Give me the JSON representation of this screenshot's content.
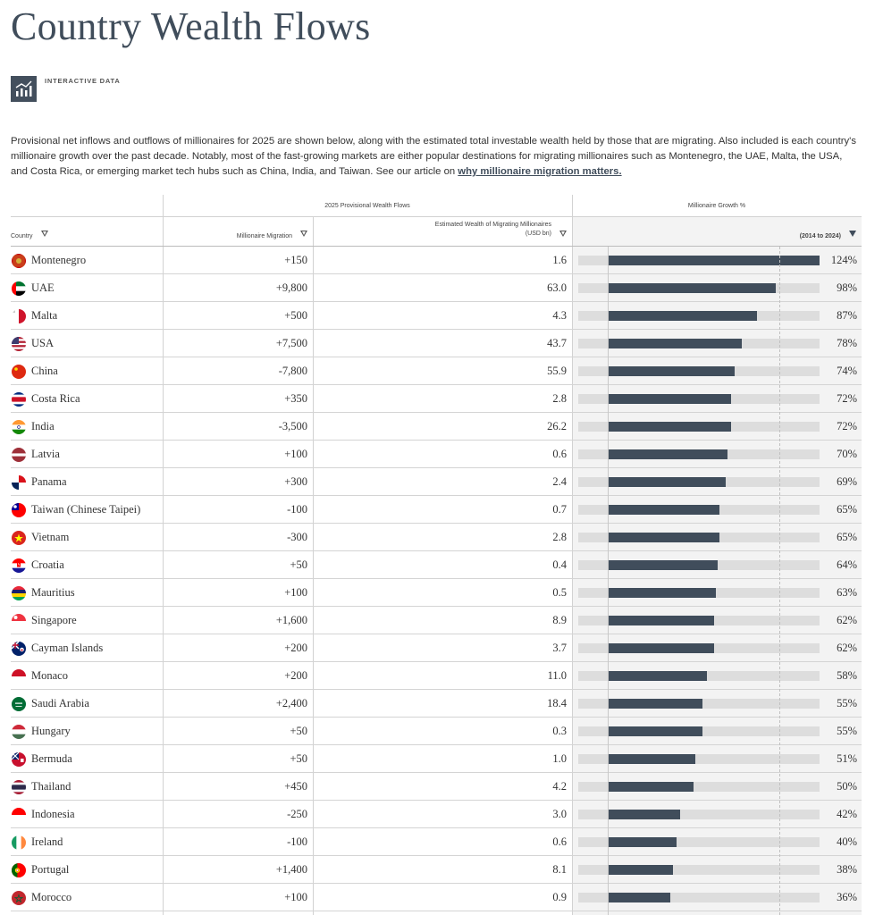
{
  "page": {
    "title": "Country Wealth Flows",
    "tag": "INTERACTIVE DATA",
    "intro": "Provisional net inflows and outflows of millionaires for 2025 are shown below, along with the estimated total investable wealth held by those that are migrating. Also included is each country's millionaire growth over the past decade. Notably, most of the fast-growing markets are either popular destinations for migrating millionaires such as Montenegro, the UAE, Malta, the USA, and Costa Rica, or emerging market tech hubs such as China, India, and Taiwan. See our article on ",
    "intro_link": "why millionaire migration matters."
  },
  "table": {
    "group_flows": "2025 Provisional Wealth Flows",
    "group_growth": "Millionaire Growth %",
    "col_country": "Country",
    "col_migration": "Millionaire Migration",
    "col_wealth_line1": "Estimated Wealth of Migrating Millionaires",
    "col_wealth_line2": "(USD bn)",
    "col_growth": "(2014 to 2024)",
    "colors": {
      "bar": "#404d5b",
      "track": "#dddddd",
      "title": "#404d5b"
    },
    "rows": [
      {
        "country": "Montenegro",
        "migration": "+150",
        "wealth": "1.6",
        "growth": "124%",
        "growth_value": 124,
        "flag": "montenegro-flag"
      },
      {
        "country": "UAE",
        "migration": "+9,800",
        "wealth": "63.0",
        "growth": "98%",
        "growth_value": 98,
        "flag": "uae-flag"
      },
      {
        "country": "Malta",
        "migration": "+500",
        "wealth": "4.3",
        "growth": "87%",
        "growth_value": 87,
        "flag": "malta-flag"
      },
      {
        "country": "USA",
        "migration": "+7,500",
        "wealth": "43.7",
        "growth": "78%",
        "growth_value": 78,
        "flag": "usa-flag"
      },
      {
        "country": "China",
        "migration": "-7,800",
        "wealth": "55.9",
        "growth": "74%",
        "growth_value": 74,
        "flag": "china-flag"
      },
      {
        "country": "Costa Rica",
        "migration": "+350",
        "wealth": "2.8",
        "growth": "72%",
        "growth_value": 72,
        "flag": "costa-rica-flag"
      },
      {
        "country": "India",
        "migration": "-3,500",
        "wealth": "26.2",
        "growth": "72%",
        "growth_value": 72,
        "flag": "india-flag"
      },
      {
        "country": "Latvia",
        "migration": "+100",
        "wealth": "0.6",
        "growth": "70%",
        "growth_value": 70,
        "flag": "latvia-flag"
      },
      {
        "country": "Panama",
        "migration": "+300",
        "wealth": "2.4",
        "growth": "69%",
        "growth_value": 69,
        "flag": "panama-flag"
      },
      {
        "country": "Taiwan (Chinese Taipei)",
        "migration": "-100",
        "wealth": "0.7",
        "growth": "65%",
        "growth_value": 65,
        "flag": "taiwan-flag"
      },
      {
        "country": "Vietnam",
        "migration": "-300",
        "wealth": "2.8",
        "growth": "65%",
        "growth_value": 65,
        "flag": "vietnam-flag"
      },
      {
        "country": "Croatia",
        "migration": "+50",
        "wealth": "0.4",
        "growth": "64%",
        "growth_value": 64,
        "flag": "croatia-flag"
      },
      {
        "country": "Mauritius",
        "migration": "+100",
        "wealth": "0.5",
        "growth": "63%",
        "growth_value": 63,
        "flag": "mauritius-flag"
      },
      {
        "country": "Singapore",
        "migration": "+1,600",
        "wealth": "8.9",
        "growth": "62%",
        "growth_value": 62,
        "flag": "singapore-flag"
      },
      {
        "country": "Cayman Islands",
        "migration": "+200",
        "wealth": "3.7",
        "growth": "62%",
        "growth_value": 62,
        "flag": "cayman-islands-flag"
      },
      {
        "country": "Monaco",
        "migration": "+200",
        "wealth": "11.0",
        "growth": "58%",
        "growth_value": 58,
        "flag": "monaco-flag"
      },
      {
        "country": "Saudi Arabia",
        "migration": "+2,400",
        "wealth": "18.4",
        "growth": "55%",
        "growth_value": 55,
        "flag": "saudi-arabia-flag"
      },
      {
        "country": "Hungary",
        "migration": "+50",
        "wealth": "0.3",
        "growth": "55%",
        "growth_value": 55,
        "flag": "hungary-flag"
      },
      {
        "country": "Bermuda",
        "migration": "+50",
        "wealth": "1.0",
        "growth": "51%",
        "growth_value": 51,
        "flag": "bermuda-flag"
      },
      {
        "country": "Thailand",
        "migration": "+450",
        "wealth": "4.2",
        "growth": "50%",
        "growth_value": 50,
        "flag": "thailand-flag"
      },
      {
        "country": "Indonesia",
        "migration": "-250",
        "wealth": "3.0",
        "growth": "42%",
        "growth_value": 42,
        "flag": "indonesia-flag"
      },
      {
        "country": "Ireland",
        "migration": "-100",
        "wealth": "0.6",
        "growth": "40%",
        "growth_value": 40,
        "flag": "ireland-flag"
      },
      {
        "country": "Portugal",
        "migration": "+1,400",
        "wealth": "8.1",
        "growth": "38%",
        "growth_value": 38,
        "flag": "portugal-flag"
      },
      {
        "country": "Morocco",
        "migration": "+100",
        "wealth": "0.9",
        "growth": "36%",
        "growth_value": 36,
        "flag": "morocco-flag"
      }
    ]
  }
}
